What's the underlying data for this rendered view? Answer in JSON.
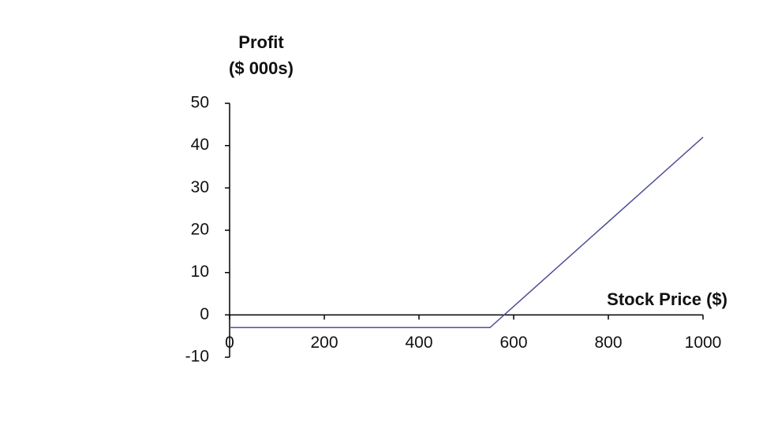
{
  "chart_data": {
    "type": "line",
    "ylabel": [
      "Profit",
      "($ 000s)"
    ],
    "xlabel": "Stock Price ($)",
    "x": [
      0,
      550,
      1000
    ],
    "series": [
      {
        "name": "Profit",
        "color": "#4f4f96",
        "values": [
          -3,
          -3,
          42
        ]
      }
    ],
    "xlim": [
      0,
      1000
    ],
    "xticks": [
      0,
      200,
      400,
      600,
      800,
      1000
    ],
    "ylim": [
      -10,
      50
    ],
    "yticks": [
      -10,
      0,
      10,
      20,
      30,
      40,
      50
    ],
    "grid": false
  }
}
